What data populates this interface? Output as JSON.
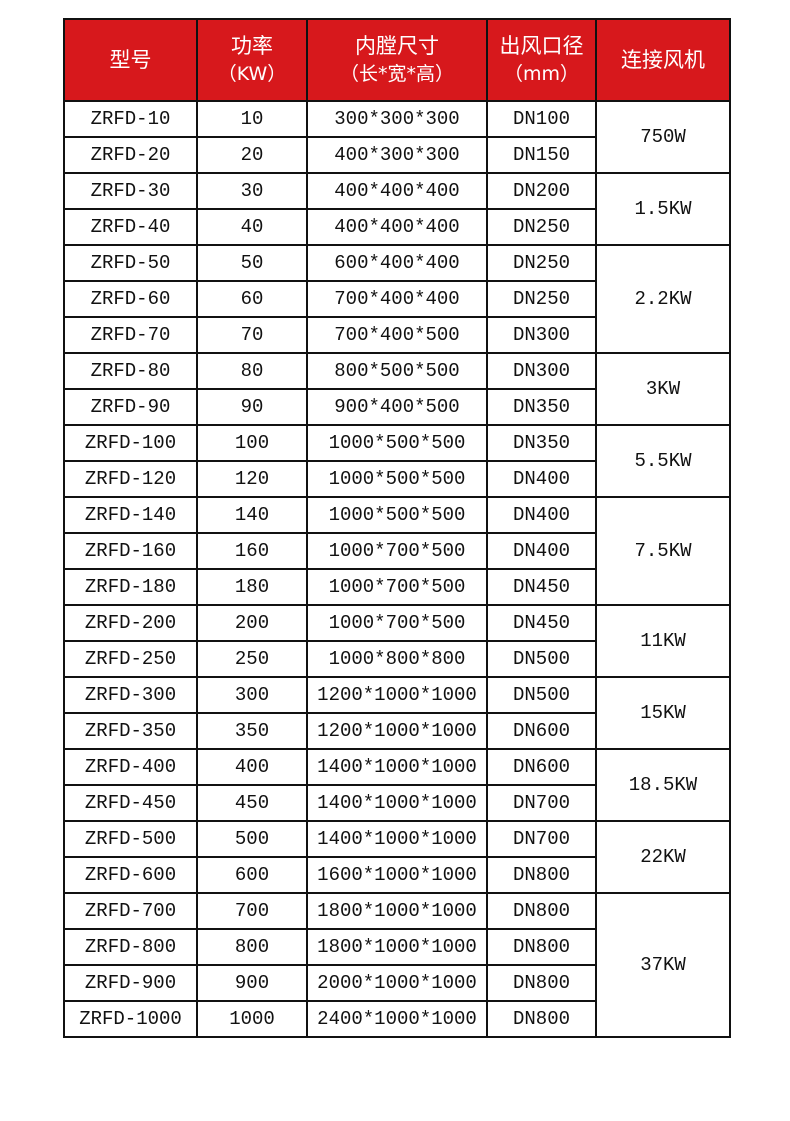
{
  "header": {
    "model": "型号",
    "power": "功率",
    "power_unit": "（KW）",
    "size": "内膛尺寸",
    "size_unit": "（长*宽*高）",
    "outlet": "出风口径",
    "outlet_unit": "（mm）",
    "fan": "连接风机"
  },
  "colors": {
    "header_bg": "#d7181c",
    "header_text": "#ffffff",
    "border": "#111111"
  },
  "rows": [
    {
      "model": "ZRFD-10",
      "power": "10",
      "size": "300*300*300",
      "outlet": "DN100"
    },
    {
      "model": "ZRFD-20",
      "power": "20",
      "size": "400*300*300",
      "outlet": "DN150"
    },
    {
      "model": "ZRFD-30",
      "power": "30",
      "size": "400*400*400",
      "outlet": "DN200"
    },
    {
      "model": "ZRFD-40",
      "power": "40",
      "size": "400*400*400",
      "outlet": "DN250"
    },
    {
      "model": "ZRFD-50",
      "power": "50",
      "size": "600*400*400",
      "outlet": "DN250"
    },
    {
      "model": "ZRFD-60",
      "power": "60",
      "size": "700*400*400",
      "outlet": "DN250"
    },
    {
      "model": "ZRFD-70",
      "power": "70",
      "size": "700*400*500",
      "outlet": "DN300"
    },
    {
      "model": "ZRFD-80",
      "power": "80",
      "size": "800*500*500",
      "outlet": "DN300"
    },
    {
      "model": "ZRFD-90",
      "power": "90",
      "size": "900*400*500",
      "outlet": "DN350"
    },
    {
      "model": "ZRFD-100",
      "power": "100",
      "size": "1000*500*500",
      "outlet": "DN350"
    },
    {
      "model": "ZRFD-120",
      "power": "120",
      "size": "1000*500*500",
      "outlet": "DN400"
    },
    {
      "model": "ZRFD-140",
      "power": "140",
      "size": "1000*500*500",
      "outlet": "DN400"
    },
    {
      "model": "ZRFD-160",
      "power": "160",
      "size": "1000*700*500",
      "outlet": "DN400"
    },
    {
      "model": "ZRFD-180",
      "power": "180",
      "size": "1000*700*500",
      "outlet": "DN450"
    },
    {
      "model": "ZRFD-200",
      "power": "200",
      "size": "1000*700*500",
      "outlet": "DN450"
    },
    {
      "model": "ZRFD-250",
      "power": "250",
      "size": "1000*800*800",
      "outlet": "DN500"
    },
    {
      "model": "ZRFD-300",
      "power": "300",
      "size": "1200*1000*1000",
      "outlet": "DN500"
    },
    {
      "model": "ZRFD-350",
      "power": "350",
      "size": "1200*1000*1000",
      "outlet": "DN600"
    },
    {
      "model": "ZRFD-400",
      "power": "400",
      "size": "1400*1000*1000",
      "outlet": "DN600"
    },
    {
      "model": "ZRFD-450",
      "power": "450",
      "size": "1400*1000*1000",
      "outlet": "DN700"
    },
    {
      "model": "ZRFD-500",
      "power": "500",
      "size": "1400*1000*1000",
      "outlet": "DN700"
    },
    {
      "model": "ZRFD-600",
      "power": "600",
      "size": "1600*1000*1000",
      "outlet": "DN800"
    },
    {
      "model": "ZRFD-700",
      "power": "700",
      "size": "1800*1000*1000",
      "outlet": "DN800"
    },
    {
      "model": "ZRFD-800",
      "power": "800",
      "size": "1800*1000*1000",
      "outlet": "DN800"
    },
    {
      "model": "ZRFD-900",
      "power": "900",
      "size": "2000*1000*1000",
      "outlet": "DN800"
    },
    {
      "model": "ZRFD-1000",
      "power": "1000",
      "size": "2400*1000*1000",
      "outlet": "DN800"
    }
  ],
  "fan_groups": [
    {
      "fan": "750W",
      "span": 2
    },
    {
      "fan": "1.5KW",
      "span": 2
    },
    {
      "fan": "2.2KW",
      "span": 3
    },
    {
      "fan": "3KW",
      "span": 2
    },
    {
      "fan": "5.5KW",
      "span": 2
    },
    {
      "fan": "7.5KW",
      "span": 3
    },
    {
      "fan": "11KW",
      "span": 2
    },
    {
      "fan": "15KW",
      "span": 2
    },
    {
      "fan": "18.5KW",
      "span": 2
    },
    {
      "fan": "22KW",
      "span": 2
    },
    {
      "fan": "37KW",
      "span": 4
    }
  ]
}
